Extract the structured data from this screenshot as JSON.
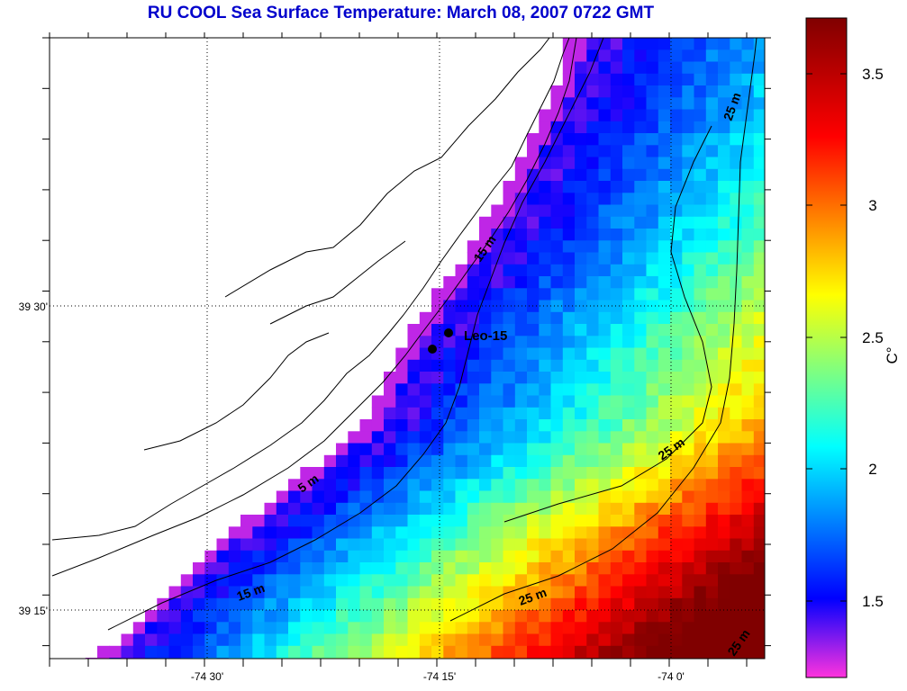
{
  "title": "RU COOL  Sea Surface Temperature:  March 08, 2007 0722 GMT",
  "map": {
    "lat_labels": [
      "39 30'",
      "39 15'"
    ],
    "lon_labels": [
      "-74 30'",
      "-74 15'",
      "-74 0'"
    ],
    "grid": "dotted",
    "station": {
      "label": "Leo-15"
    },
    "contour_labels": [
      "15 m",
      "5 m",
      "15 m",
      "25 m",
      "25 m",
      "25 m",
      "25 m"
    ]
  },
  "colorbar": {
    "unit": "C°",
    "ticks": [
      "1.5",
      "2",
      "2.5",
      "3",
      "3.5"
    ],
    "range": [
      1.2,
      3.7
    ],
    "colors": [
      "#ff33dd",
      "#0000ff",
      "#00ffff",
      "#ffff00",
      "#ff0000",
      "#800000"
    ]
  }
}
